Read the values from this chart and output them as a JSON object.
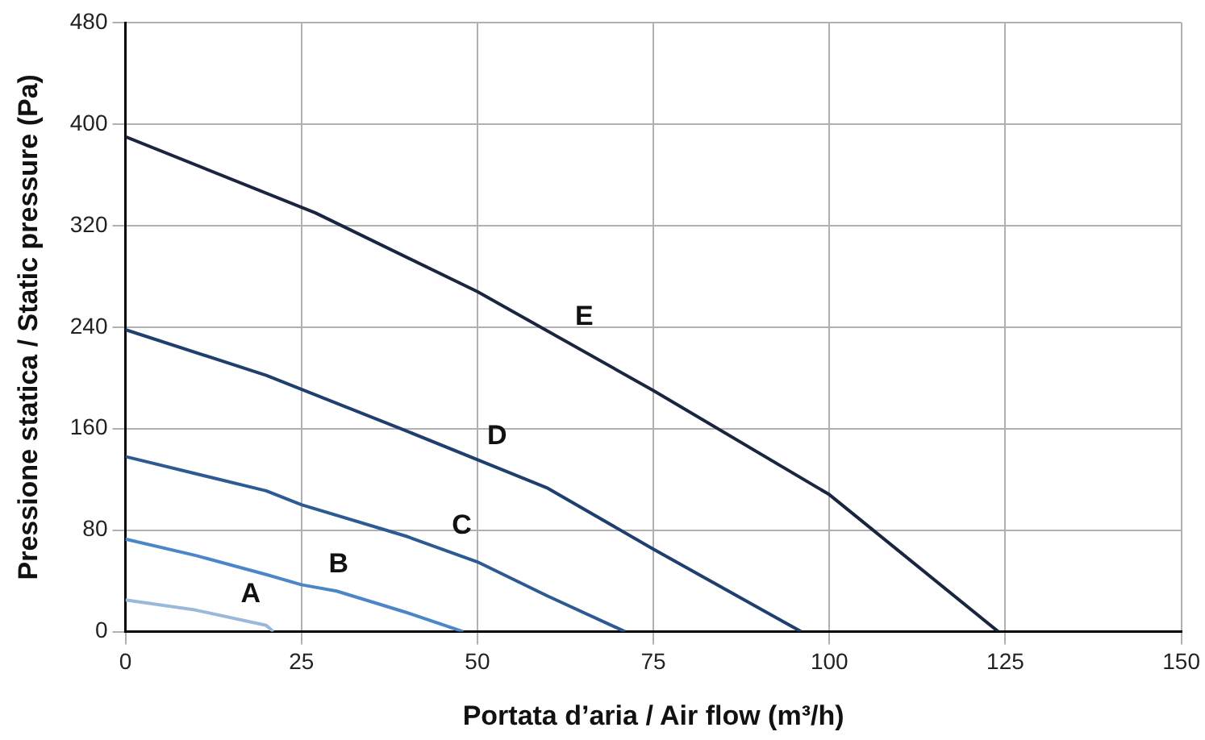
{
  "chart_data": {
    "type": "line",
    "xlabel": "Portata d’aria / Air flow (m³/h)",
    "ylabel": "Pressione statica / Static pressure (Pa)",
    "xlim": [
      0,
      150
    ],
    "xticks": [
      0,
      25,
      50,
      75,
      100,
      125,
      150
    ],
    "ylim": [
      0,
      480
    ],
    "yticks": [
      0,
      80,
      160,
      240,
      320,
      400,
      480
    ],
    "grid": true,
    "marker": "none",
    "line_style": "solid",
    "series": [
      {
        "name": "A",
        "color": "#9ab8d8",
        "x": [
          0,
          10,
          20,
          21
        ],
        "values": [
          25,
          17,
          5,
          0
        ]
      },
      {
        "name": "B",
        "color": "#4a86c8",
        "x": [
          0,
          10,
          20,
          25,
          30,
          40,
          48
        ],
        "values": [
          73,
          60,
          45,
          37,
          32,
          15,
          0
        ]
      },
      {
        "name": "C",
        "color": "#2d5a93",
        "x": [
          0,
          20,
          25,
          40,
          50,
          60,
          71
        ],
        "values": [
          138,
          111,
          100,
          75,
          55,
          28,
          0
        ]
      },
      {
        "name": "D",
        "color": "#1f3f6e",
        "x": [
          0,
          20,
          40,
          60,
          75,
          96
        ],
        "values": [
          238,
          202,
          158,
          113,
          65,
          0
        ]
      },
      {
        "name": "E",
        "color": "#1a2540",
        "x": [
          0,
          27,
          50,
          75,
          100,
          124
        ],
        "values": [
          390,
          330,
          268,
          190,
          108,
          0
        ]
      }
    ]
  }
}
